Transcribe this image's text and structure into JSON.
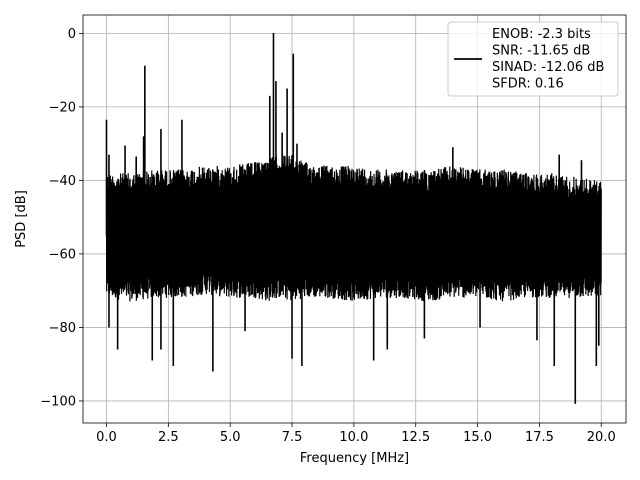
{
  "chart_data": {
    "type": "line",
    "title": "",
    "xlabel": "Frequency [MHz]",
    "ylabel": "PSD [dB]",
    "xlim": [
      -0.95,
      21.0
    ],
    "ylim": [
      -106,
      5
    ],
    "xticks": [
      0.0,
      2.5,
      5.0,
      7.5,
      10.0,
      12.5,
      15.0,
      17.5,
      20.0
    ],
    "xtick_labels": [
      "0.0",
      "2.5",
      "5.0",
      "7.5",
      "10.0",
      "12.5",
      "15.0",
      "17.5",
      "20.0"
    ],
    "yticks": [
      0,
      -20,
      -40,
      -60,
      -80,
      -100
    ],
    "ytick_labels": [
      "0",
      "−20",
      "−40",
      "−60",
      "−80",
      "−100"
    ],
    "grid": true,
    "legend_position": "top-right",
    "line_color": "#000000",
    "series": [
      {
        "name": "",
        "legend_lines": [
          "ENOB: -2.3 bits",
          "SNR: -11.65 dB",
          "SINAD: -12.06 dB",
          "SFDR: 0.16"
        ],
        "noise_floor_envelope": {
          "x": [
            0.0,
            1.0,
            2.0,
            3.0,
            4.0,
            5.0,
            6.0,
            6.5,
            7.0,
            7.5,
            8.0,
            9.0,
            10.0,
            11.0,
            12.0,
            13.0,
            14.0,
            15.0,
            16.0,
            17.0,
            18.0,
            19.0,
            20.0
          ],
          "upper": [
            -38,
            -38,
            -37,
            -37,
            -36,
            -36,
            -35,
            -34,
            -33,
            -33,
            -35,
            -36,
            -36,
            -37,
            -37,
            -37,
            -36,
            -37,
            -37,
            -38,
            -38,
            -39,
            -40
          ],
          "lower": [
            -72,
            -73,
            -72,
            -72,
            -71,
            -72,
            -72,
            -73,
            -72,
            -73,
            -72,
            -72,
            -73,
            -72,
            -72,
            -73,
            -72,
            -72,
            -73,
            -72,
            -72,
            -72,
            -72
          ]
        },
        "peaks": [
          {
            "x": 0.0,
            "y": -23.5
          },
          {
            "x": 0.1,
            "y": -33
          },
          {
            "x": 0.75,
            "y": -30.5
          },
          {
            "x": 1.2,
            "y": -33.5
          },
          {
            "x": 1.55,
            "y": -8.8
          },
          {
            "x": 1.5,
            "y": -28
          },
          {
            "x": 2.2,
            "y": -26
          },
          {
            "x": 3.05,
            "y": -23.5
          },
          {
            "x": 6.6,
            "y": -17
          },
          {
            "x": 6.75,
            "y": 0.1
          },
          {
            "x": 6.85,
            "y": -13
          },
          {
            "x": 7.1,
            "y": -27
          },
          {
            "x": 7.3,
            "y": -15
          },
          {
            "x": 7.55,
            "y": -5.5
          },
          {
            "x": 7.7,
            "y": -30
          },
          {
            "x": 14.0,
            "y": -31
          },
          {
            "x": 18.3,
            "y": -33
          },
          {
            "x": 19.2,
            "y": -34.5
          }
        ],
        "dips": [
          {
            "x": 0.1,
            "y": -80
          },
          {
            "x": 0.45,
            "y": -86
          },
          {
            "x": 1.85,
            "y": -89
          },
          {
            "x": 2.2,
            "y": -86
          },
          {
            "x": 2.7,
            "y": -90.5
          },
          {
            "x": 4.3,
            "y": -92
          },
          {
            "x": 5.6,
            "y": -81
          },
          {
            "x": 7.5,
            "y": -88.5
          },
          {
            "x": 7.9,
            "y": -90.5
          },
          {
            "x": 10.8,
            "y": -89
          },
          {
            "x": 11.35,
            "y": -86
          },
          {
            "x": 12.85,
            "y": -83
          },
          {
            "x": 15.1,
            "y": -80
          },
          {
            "x": 17.4,
            "y": -83.5
          },
          {
            "x": 18.1,
            "y": -90.5
          },
          {
            "x": 18.95,
            "y": -100.8
          },
          {
            "x": 19.8,
            "y": -90.5
          },
          {
            "x": 19.9,
            "y": -85
          }
        ]
      }
    ]
  }
}
